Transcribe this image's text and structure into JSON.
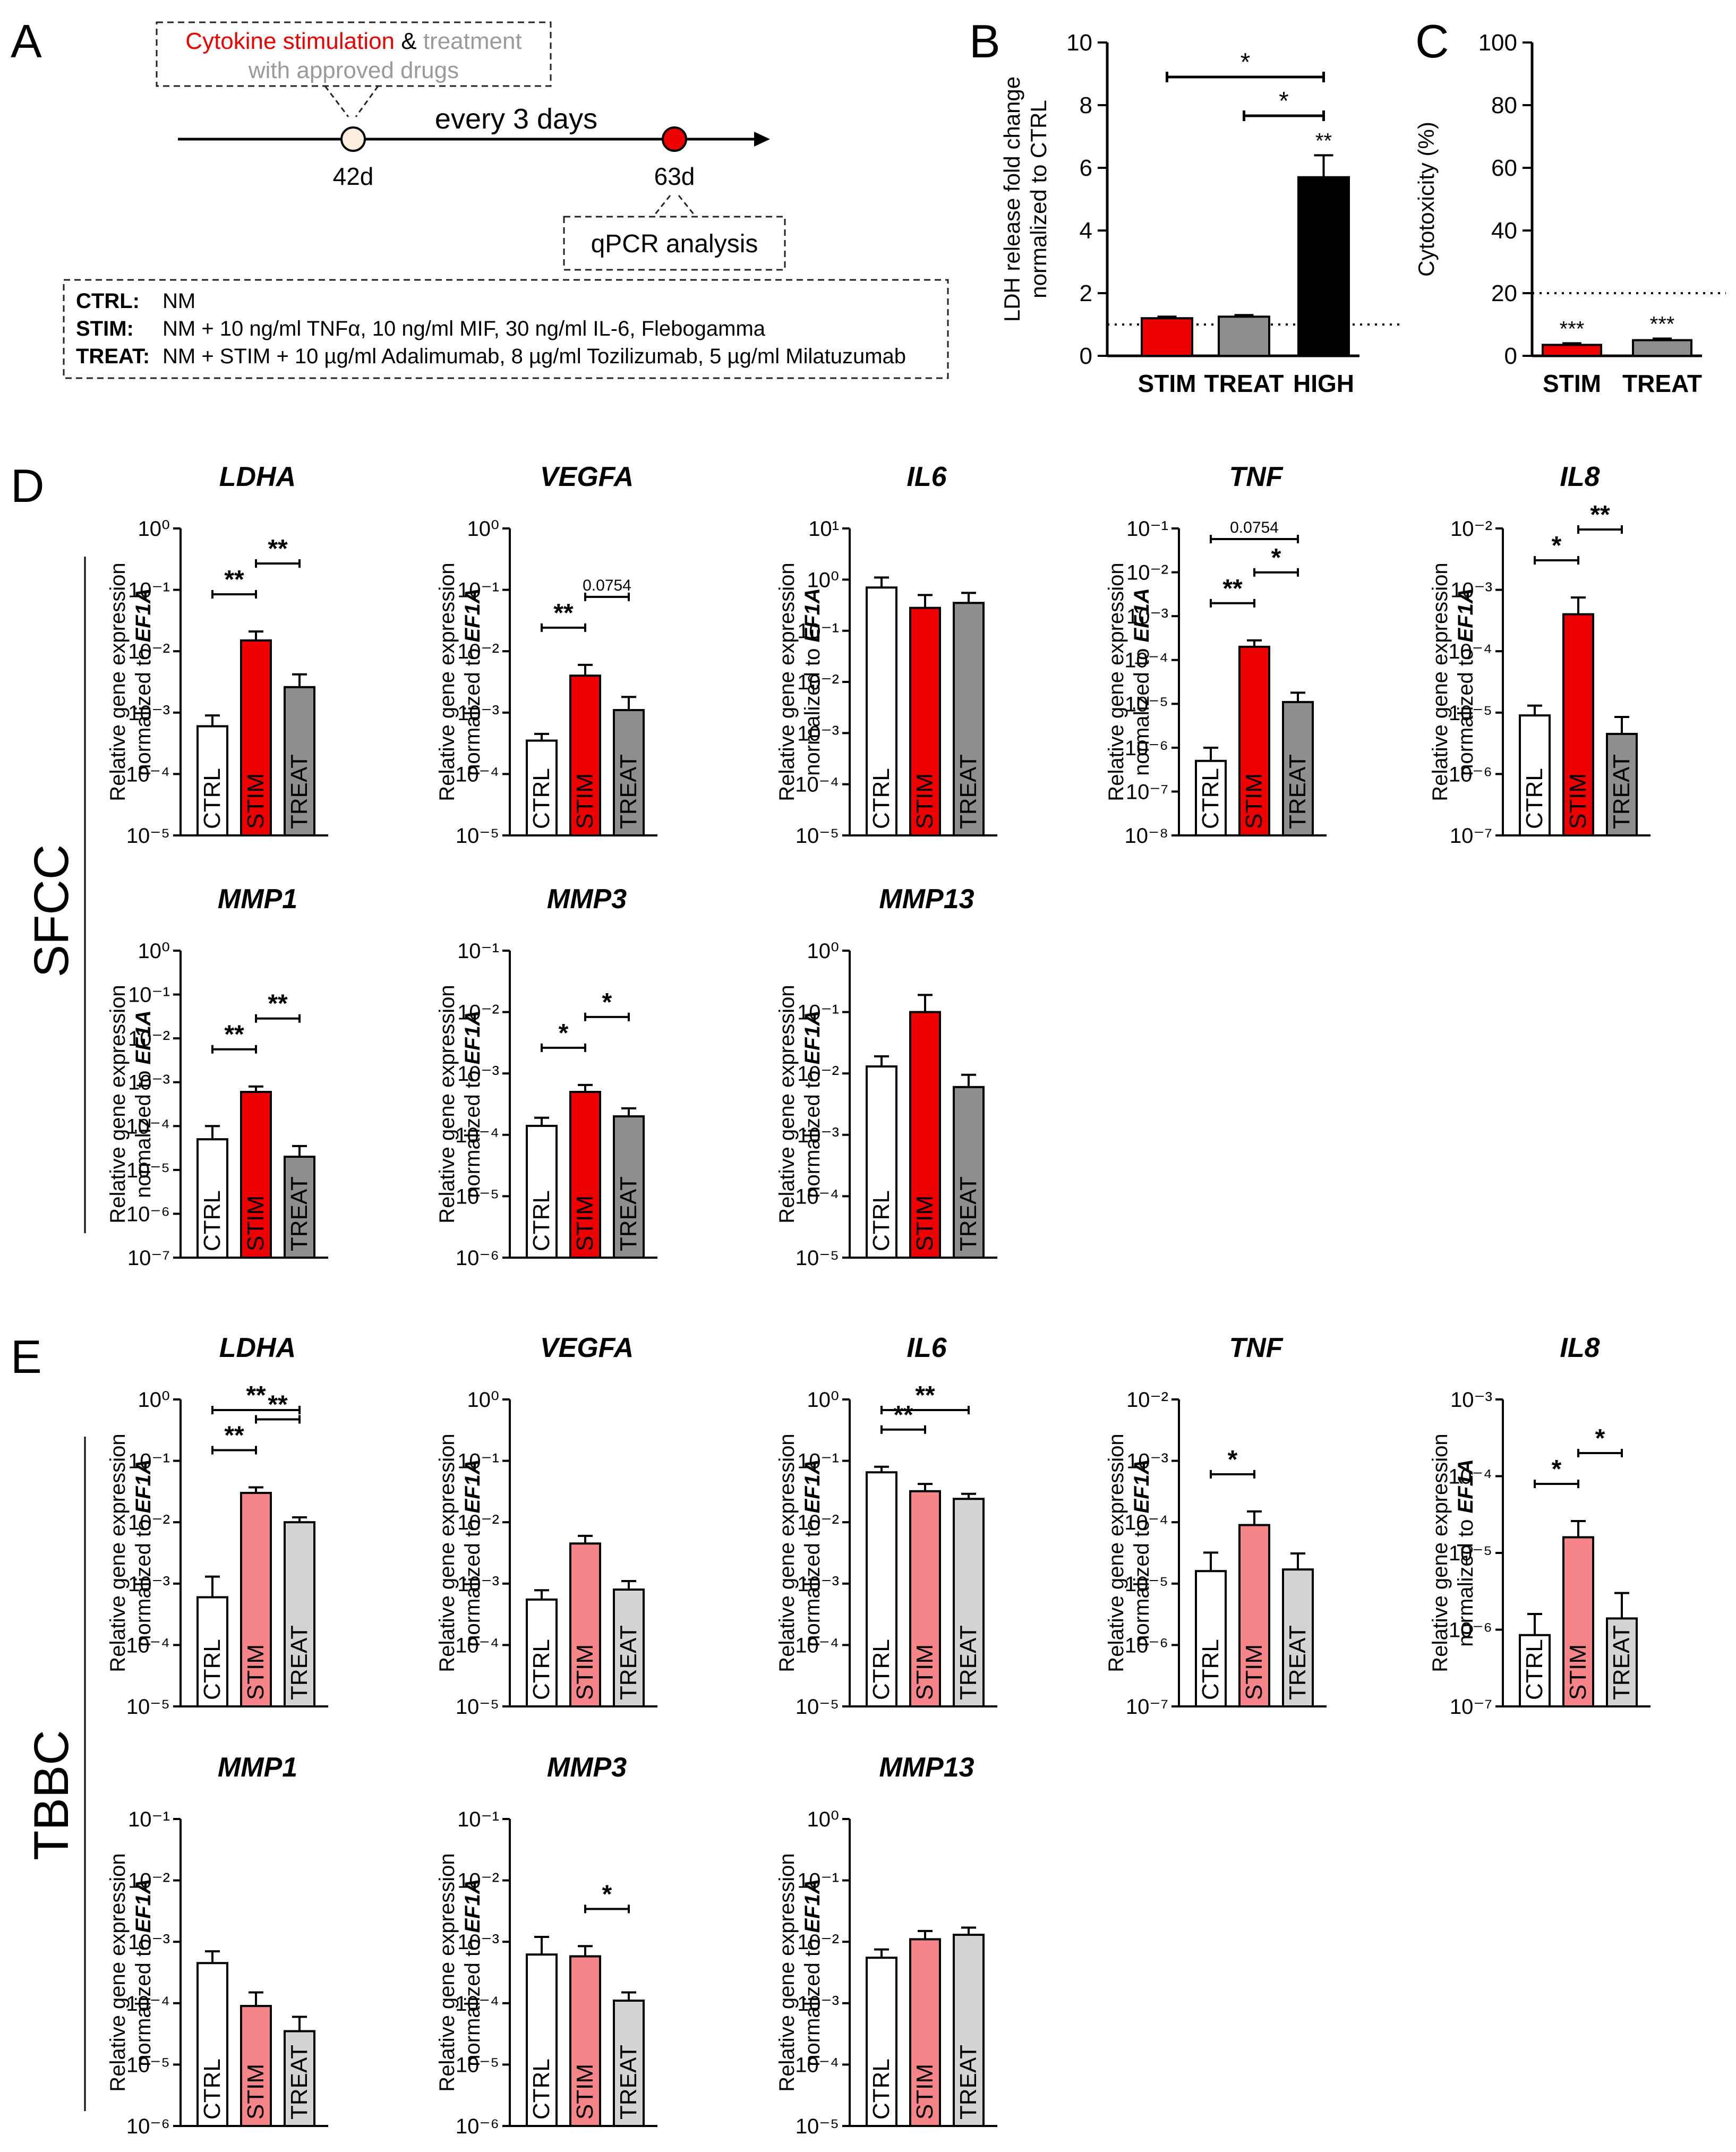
{
  "colors": {
    "ctrl": "#ffffff",
    "sfcc_stim": "#ef0000",
    "sfcc_treat": "#8e8e8e",
    "tbbc_stim": "#f58588",
    "tbbc_treat": "#d4d4d4",
    "high": "#000000",
    "red_text": "#ef0000",
    "gray_text": "#9a9a9a"
  },
  "panel_a": {
    "letter": "A",
    "box_red": "Cytokine stimulation",
    "box_amp": " & ",
    "box_gray1": "treatment",
    "box_gray2": "with approved drugs",
    "interval": "every 3 days",
    "day_start": "42d",
    "day_end": "63d",
    "analysis": "qPCR analysis",
    "legend": [
      {
        "key": "CTRL:",
        "text": "NM"
      },
      {
        "key": "STIM:",
        "text": "NM + 10 ng/ml TNFα, 10 ng/ml MIF, 30 ng/ml IL-6, Flebogamma"
      },
      {
        "key": "TREAT:",
        "text": "NM + STIM + 10 µg/ml Adalimumab, 8 µg/ml Tozilizumab, 5 µg/ml Milatuzumab"
      }
    ]
  },
  "row_labels": {
    "d": "D",
    "e": "E",
    "sfcc": "SFCC",
    "tbbc": "TBBC"
  },
  "ylabel_line1": "Relative gene expression",
  "ylabel_line2_prefix": "normalized to ",
  "ylabel_line2_gene": "EF1A",
  "chart_data": [
    {
      "id": "B",
      "letter": "B",
      "type": "bar",
      "title": "",
      "ylabel": [
        "LDH release fold change",
        "normalized to CTRL"
      ],
      "scale": "linear",
      "ylim": [
        0,
        10
      ],
      "ticks": [
        0,
        2,
        4,
        6,
        8,
        10
      ],
      "categories": [
        "STIM",
        "TREAT",
        "HIGH"
      ],
      "values": [
        1.2,
        1.25,
        5.7
      ],
      "errors": [
        0.05,
        0.05,
        0.7
      ],
      "fills": [
        "sfcc_stim",
        "sfcc_treat",
        "high"
      ],
      "reference_line": 1,
      "sig_above_bars": [
        "",
        "",
        "**"
      ],
      "brackets": [
        {
          "from": 0,
          "to": 2,
          "label": "*"
        },
        {
          "from": 1,
          "to": 2,
          "label": "*"
        }
      ]
    },
    {
      "id": "C",
      "letter": "C",
      "type": "bar",
      "title": "",
      "ylabel": [
        "Cytotoxicity (%)"
      ],
      "scale": "linear",
      "ylim": [
        0,
        100
      ],
      "ticks": [
        0,
        20,
        40,
        60,
        80,
        100
      ],
      "categories": [
        "STIM",
        "TREAT"
      ],
      "values": [
        3.5,
        5.0
      ],
      "errors": [
        0.5,
        0.5
      ],
      "fills": [
        "sfcc_stim",
        "sfcc_treat"
      ],
      "reference_line": 20,
      "sig_above_bars": [
        "***",
        "***"
      ],
      "brackets": []
    },
    {
      "id": "D1",
      "title": "LDHA",
      "group": "SFCC",
      "type": "bar",
      "scale": "log",
      "ylim_exp": [
        -5,
        0
      ],
      "categories": [
        "CTRL",
        "STIM",
        "TREAT"
      ],
      "values": [
        0.0006,
        0.015,
        0.0026
      ],
      "errors_upper": [
        0.0009,
        0.021,
        0.0042
      ],
      "fills": [
        "ctrl",
        "sfcc_stim",
        "sfcc_treat"
      ],
      "brackets": [
        {
          "from": 0,
          "to": 1,
          "label": "**"
        },
        {
          "from": 1,
          "to": 2,
          "label": "**"
        }
      ]
    },
    {
      "id": "D2",
      "title": "VEGFA",
      "group": "SFCC",
      "type": "bar",
      "scale": "log",
      "ylim_exp": [
        -5,
        0
      ],
      "categories": [
        "CTRL",
        "STIM",
        "TREAT"
      ],
      "values": [
        0.00035,
        0.004,
        0.0011
      ],
      "errors_upper": [
        0.00045,
        0.006,
        0.0018
      ],
      "fills": [
        "ctrl",
        "sfcc_stim",
        "sfcc_treat"
      ],
      "brackets": [
        {
          "from": 0,
          "to": 1,
          "label": "**"
        },
        {
          "from": 1,
          "to": 2,
          "label": "0.0754"
        }
      ]
    },
    {
      "id": "D3",
      "title": "IL6",
      "group": "SFCC",
      "type": "bar",
      "scale": "log",
      "ylim_exp": [
        -5,
        1
      ],
      "categories": [
        "CTRL",
        "STIM",
        "TREAT"
      ],
      "values": [
        0.7,
        0.28,
        0.35
      ],
      "errors_upper": [
        1.1,
        0.5,
        0.55
      ],
      "fills": [
        "ctrl",
        "sfcc_stim",
        "sfcc_treat"
      ],
      "brackets": []
    },
    {
      "id": "D4",
      "title": "TNF",
      "group": "SFCC",
      "type": "bar",
      "scale": "log",
      "ylim_exp": [
        -8,
        -1
      ],
      "categories": [
        "CTRL",
        "STIM",
        "TREAT"
      ],
      "values": [
        5e-07,
        0.0002,
        1.1e-05
      ],
      "errors_upper": [
        1e-06,
        0.00028,
        1.8e-05
      ],
      "fills": [
        "ctrl",
        "sfcc_stim",
        "sfcc_treat"
      ],
      "brackets": [
        {
          "from": 0,
          "to": 1,
          "label": "**"
        },
        {
          "from": 1,
          "to": 2,
          "label": "*"
        },
        {
          "from": 0,
          "to": 2,
          "label": "0.0754"
        }
      ]
    },
    {
      "id": "D5",
      "title": "IL8",
      "group": "SFCC",
      "type": "bar",
      "scale": "log",
      "ylim_exp": [
        -7,
        -2
      ],
      "categories": [
        "CTRL",
        "STIM",
        "TREAT"
      ],
      "values": [
        9e-06,
        0.0004,
        4.5e-06
      ],
      "errors_upper": [
        1.3e-05,
        0.00075,
        8.5e-06
      ],
      "fills": [
        "ctrl",
        "sfcc_stim",
        "sfcc_treat"
      ],
      "brackets": [
        {
          "from": 0,
          "to": 1,
          "label": "*"
        },
        {
          "from": 1,
          "to": 2,
          "label": "**"
        }
      ]
    },
    {
      "id": "D6",
      "title": "MMP1",
      "group": "SFCC",
      "type": "bar",
      "scale": "log",
      "ylim_exp": [
        -7,
        0
      ],
      "categories": [
        "CTRL",
        "STIM",
        "TREAT"
      ],
      "values": [
        5e-05,
        0.0006,
        2e-05
      ],
      "errors_upper": [
        0.0001,
        0.0008,
        3.5e-05
      ],
      "fills": [
        "ctrl",
        "sfcc_stim",
        "sfcc_treat"
      ],
      "brackets": [
        {
          "from": 0,
          "to": 1,
          "label": "**"
        },
        {
          "from": 1,
          "to": 2,
          "label": "**"
        }
      ]
    },
    {
      "id": "D7",
      "title": "MMP3",
      "group": "SFCC",
      "type": "bar",
      "scale": "log",
      "ylim_exp": [
        -6,
        -1
      ],
      "categories": [
        "CTRL",
        "STIM",
        "TREAT"
      ],
      "values": [
        0.00014,
        0.0005,
        0.0002
      ],
      "errors_upper": [
        0.00019,
        0.00065,
        0.00027
      ],
      "fills": [
        "ctrl",
        "sfcc_stim",
        "sfcc_treat"
      ],
      "brackets": [
        {
          "from": 0,
          "to": 1,
          "label": "*"
        },
        {
          "from": 1,
          "to": 2,
          "label": "*"
        }
      ]
    },
    {
      "id": "D8",
      "title": "MMP13",
      "group": "SFCC",
      "type": "bar",
      "scale": "log",
      "ylim_exp": [
        -5,
        0
      ],
      "categories": [
        "CTRL",
        "STIM",
        "TREAT"
      ],
      "values": [
        0.013,
        0.1,
        0.006
      ],
      "errors_upper": [
        0.019,
        0.19,
        0.0095
      ],
      "fills": [
        "ctrl",
        "sfcc_stim",
        "sfcc_treat"
      ],
      "brackets": []
    },
    {
      "id": "E1",
      "title": "LDHA",
      "group": "TBBC",
      "type": "bar",
      "scale": "log",
      "ylim_exp": [
        -5,
        0
      ],
      "categories": [
        "CTRL",
        "STIM",
        "TREAT"
      ],
      "values": [
        0.0006,
        0.03,
        0.01
      ],
      "errors_upper": [
        0.0013,
        0.037,
        0.012
      ],
      "fills": [
        "ctrl",
        "tbbc_stim",
        "tbbc_treat"
      ],
      "brackets": [
        {
          "from": 0,
          "to": 1,
          "label": "**"
        },
        {
          "from": 1,
          "to": 2,
          "label": "**"
        },
        {
          "from": 0,
          "to": 2,
          "label": "**"
        }
      ]
    },
    {
      "id": "E2",
      "title": "VEGFA",
      "group": "TBBC",
      "type": "bar",
      "scale": "log",
      "ylim_exp": [
        -5,
        0
      ],
      "categories": [
        "CTRL",
        "STIM",
        "TREAT"
      ],
      "values": [
        0.00055,
        0.0045,
        0.0008
      ],
      "errors_upper": [
        0.00078,
        0.006,
        0.0011
      ],
      "fills": [
        "ctrl",
        "tbbc_stim",
        "tbbc_treat"
      ],
      "brackets": []
    },
    {
      "id": "E3",
      "title": "IL6",
      "group": "TBBC",
      "type": "bar",
      "scale": "log",
      "ylim_exp": [
        -5,
        0
      ],
      "categories": [
        "CTRL",
        "STIM",
        "TREAT"
      ],
      "values": [
        0.065,
        0.032,
        0.024
      ],
      "errors_upper": [
        0.08,
        0.042,
        0.029
      ],
      "fills": [
        "ctrl",
        "tbbc_stim",
        "tbbc_treat"
      ],
      "brackets": [
        {
          "from": 0,
          "to": 1,
          "label": "**"
        },
        {
          "from": 0,
          "to": 2,
          "label": "**"
        }
      ]
    },
    {
      "id": "E4",
      "title": "TNF",
      "group": "TBBC",
      "type": "bar",
      "scale": "log",
      "ylim_exp": [
        -7,
        -2
      ],
      "categories": [
        "CTRL",
        "STIM",
        "TREAT"
      ],
      "values": [
        1.6e-05,
        9e-05,
        1.7e-05
      ],
      "errors_upper": [
        3.2e-05,
        0.00015,
        3.1e-05
      ],
      "fills": [
        "ctrl",
        "tbbc_stim",
        "tbbc_treat"
      ],
      "brackets": [
        {
          "from": 0,
          "to": 1,
          "label": "*"
        }
      ]
    },
    {
      "id": "E5",
      "title": "IL8",
      "group": "TBBC",
      "type": "bar",
      "scale": "log",
      "ylim_exp": [
        -7,
        -3
      ],
      "categories": [
        "CTRL",
        "STIM",
        "TREAT"
      ],
      "values": [
        8.5e-07,
        1.6e-05,
        1.4e-06
      ],
      "errors_upper": [
        1.6e-06,
        2.6e-05,
        3e-06
      ],
      "fills": [
        "ctrl",
        "tbbc_stim",
        "tbbc_treat"
      ],
      "brackets": [
        {
          "from": 0,
          "to": 1,
          "label": "*"
        },
        {
          "from": 1,
          "to": 2,
          "label": "*"
        }
      ]
    },
    {
      "id": "E6",
      "title": "MMP1",
      "group": "TBBC",
      "type": "bar",
      "scale": "log",
      "ylim_exp": [
        -6,
        -1
      ],
      "categories": [
        "CTRL",
        "STIM",
        "TREAT"
      ],
      "values": [
        0.00045,
        9e-05,
        3.5e-05
      ],
      "errors_upper": [
        0.0007,
        0.00015,
        6e-05
      ],
      "fills": [
        "ctrl",
        "tbbc_stim",
        "tbbc_treat"
      ],
      "brackets": []
    },
    {
      "id": "E7",
      "title": "MMP3",
      "group": "TBBC",
      "type": "bar",
      "scale": "log",
      "ylim_exp": [
        -6,
        -1
      ],
      "categories": [
        "CTRL",
        "STIM",
        "TREAT"
      ],
      "values": [
        0.00062,
        0.00058,
        0.00011
      ],
      "errors_upper": [
        0.0012,
        0.00085,
        0.00015
      ],
      "fills": [
        "ctrl",
        "tbbc_stim",
        "tbbc_treat"
      ],
      "brackets": [
        {
          "from": 1,
          "to": 2,
          "label": "*"
        }
      ]
    },
    {
      "id": "E8",
      "title": "MMP13",
      "group": "TBBC",
      "type": "bar",
      "scale": "log",
      "ylim_exp": [
        -5,
        0
      ],
      "categories": [
        "CTRL",
        "STIM",
        "TREAT"
      ],
      "values": [
        0.0055,
        0.011,
        0.013
      ],
      "errors_upper": [
        0.0075,
        0.015,
        0.017
      ],
      "fills": [
        "ctrl",
        "tbbc_stim",
        "tbbc_treat"
      ],
      "brackets": []
    }
  ]
}
